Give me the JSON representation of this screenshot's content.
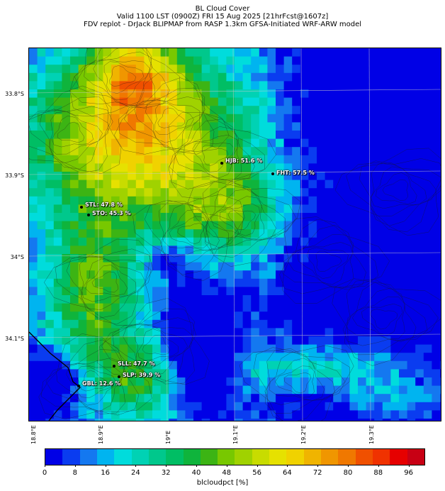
{
  "header": {
    "line1": "BL Cloud Cover",
    "line2": "Valid 1100 LST (0900Z) FRI 15 Aug 2025 [21hrFcst@1607z]",
    "line3": "FDV replot - DrJack BLIPMAP from RASP 1.3km GFSA-Initiated WRF-ARW model"
  },
  "axes": {
    "lat_labels": [
      "33.8°S",
      "33.9°S",
      "34°S",
      "34.1°S"
    ],
    "lon_labels": [
      "18.8°E",
      "18.9°E",
      "19°E",
      "19.1°E",
      "19.2°E",
      "19.3°E"
    ]
  },
  "stations": [
    {
      "id": "hjb",
      "label": "HJB: 51.6 %"
    },
    {
      "id": "fht",
      "label": "FHT: 57.5 %"
    },
    {
      "id": "stl",
      "label": "STL: 47.8 %"
    },
    {
      "id": "sto",
      "label": "STO: 45.3 %"
    },
    {
      "id": "sll",
      "label": "SLL: 47.7 %"
    },
    {
      "id": "slp",
      "label": "SLP: 39.9 %"
    },
    {
      "id": "gbl",
      "label": "GBL: 12.6 %"
    }
  ],
  "colorbar": {
    "label": "blcloudpct [%]",
    "ticks": [
      "0",
      "8",
      "16",
      "24",
      "32",
      "40",
      "48",
      "56",
      "64",
      "72",
      "80",
      "88",
      "96"
    ],
    "colors": [
      "#0000e6",
      "#0a3cf0",
      "#1478f0",
      "#00b4f0",
      "#00dcdc",
      "#00d2b4",
      "#00c88c",
      "#00be64",
      "#0fb43c",
      "#3cb414",
      "#78c800",
      "#a0d200",
      "#c8dc00",
      "#e6e100",
      "#f0d200",
      "#f0b400",
      "#f09600",
      "#f07800",
      "#f05000",
      "#f03200",
      "#e60000",
      "#c80014"
    ],
    "scale_min": 0,
    "scale_max": 100
  }
}
